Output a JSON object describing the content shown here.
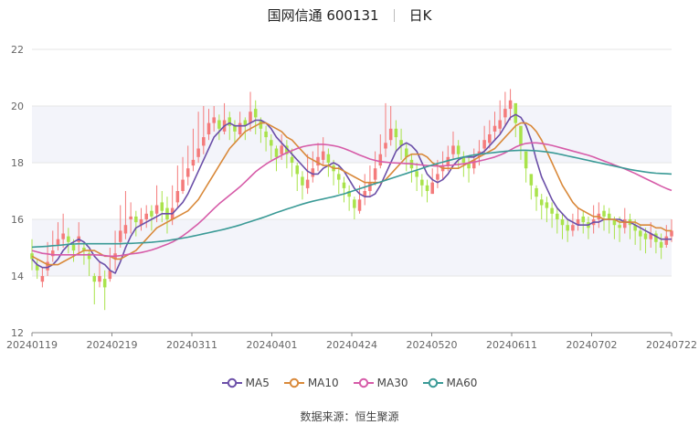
{
  "header": {
    "stock": "国网信通 600131",
    "period": "日K"
  },
  "source": {
    "label": "数据来源：",
    "value": "恒生聚源"
  },
  "colors": {
    "up": "#f47b7b",
    "down": "#a9e34b",
    "grid": "#e6e6e6",
    "band": "#f3f4fa",
    "axis": "#888888"
  },
  "chart_data": {
    "type": "line",
    "x_ticks": [
      "20240119",
      "20240219",
      "20240311",
      "20240401",
      "20240424",
      "20240520",
      "20240611",
      "20240702",
      "20240722"
    ],
    "y_ticks": [
      "12",
      "14",
      "16",
      "18",
      "20",
      "22"
    ],
    "ylim": [
      12,
      22
    ],
    "n_days": 124,
    "candles": {
      "close": [
        14.6,
        14.2,
        14.0,
        14.5,
        14.9,
        15.3,
        15.5,
        15.2,
        14.9,
        15.4,
        14.9,
        14.6,
        13.8,
        14.0,
        13.6,
        14.2,
        14.8,
        15.6,
        15.8,
        16.1,
        15.9,
        16.0,
        16.2,
        16.1,
        16.5,
        16.3,
        16.0,
        16.4,
        17.0,
        17.4,
        17.8,
        18.1,
        18.5,
        18.9,
        19.4,
        19.6,
        19.2,
        19.5,
        19.3,
        19.1,
        19.4,
        19.3,
        19.8,
        19.6,
        19.2,
        18.9,
        18.6,
        18.2,
        18.6,
        18.3,
        18.0,
        17.6,
        17.2,
        17.4,
        17.8,
        18.2,
        18.4,
        18.0,
        17.7,
        17.4,
        17.1,
        16.8,
        16.4,
        16.7,
        17.0,
        17.3,
        17.8,
        18.3,
        18.7,
        19.2,
        18.9,
        18.6,
        18.2,
        17.8,
        17.5,
        17.2,
        17.0,
        17.3,
        17.6,
        17.9,
        18.2,
        18.6,
        18.3,
        18.0,
        17.8,
        18.1,
        18.4,
        18.8,
        19.0,
        19.3,
        19.5,
        19.9,
        20.2,
        19.4,
        18.6,
        17.8,
        17.2,
        16.8,
        16.5,
        16.4,
        16.2,
        16.0,
        15.8,
        15.6,
        15.8,
        16.0,
        15.9,
        15.7,
        16.0,
        16.2,
        16.1,
        16.0,
        15.8,
        15.7,
        16.0,
        15.8,
        15.6,
        15.4,
        15.3,
        15.5,
        15.2,
        15.0,
        15.4,
        15.6
      ],
      "high": [
        15.3,
        14.6,
        14.3,
        15.2,
        15.6,
        15.9,
        16.2,
        15.7,
        15.3,
        15.9,
        15.2,
        14.9,
        14.1,
        14.5,
        14.2,
        15.0,
        15.6,
        16.5,
        17.0,
        16.6,
        16.3,
        16.4,
        16.5,
        16.5,
        17.2,
        17.0,
        16.8,
        17.2,
        17.9,
        18.2,
        18.6,
        19.2,
        19.8,
        20.0,
        19.9,
        20.0,
        19.7,
        20.1,
        19.8,
        19.5,
        19.8,
        19.6,
        20.5,
        20.2,
        19.6,
        19.3,
        19.0,
        18.6,
        19.0,
        18.8,
        18.5,
        18.0,
        17.7,
        18.3,
        18.4,
        18.7,
        18.9,
        18.5,
        18.1,
        17.9,
        17.5,
        17.2,
        16.8,
        17.2,
        17.6,
        17.9,
        18.4,
        19.0,
        20.1,
        20.0,
        19.5,
        19.2,
        18.7,
        18.3,
        18.0,
        17.6,
        17.4,
        17.8,
        18.1,
        18.4,
        18.6,
        19.1,
        18.8,
        18.4,
        18.2,
        18.5,
        18.8,
        19.3,
        19.5,
        19.8,
        20.2,
        20.5,
        20.6,
        20.0,
        19.1,
        18.2,
        17.6,
        17.2,
        16.9,
        16.8,
        16.6,
        16.4,
        16.2,
        16.0,
        16.2,
        16.4,
        16.3,
        16.1,
        16.5,
        16.6,
        16.5,
        16.4,
        16.1,
        16.1,
        16.4,
        16.2,
        16.0,
        15.8,
        15.7,
        15.9,
        15.6,
        15.5,
        15.8,
        16.0
      ],
      "low": [
        14.2,
        13.9,
        13.6,
        14.0,
        14.5,
        14.9,
        15.0,
        14.8,
        14.5,
        14.8,
        14.4,
        14.0,
        13.0,
        13.6,
        12.8,
        13.8,
        14.2,
        15.0,
        15.3,
        15.5,
        15.4,
        15.6,
        15.7,
        15.6,
        15.9,
        15.9,
        15.5,
        15.8,
        16.4,
        16.9,
        17.2,
        17.7,
        18.0,
        18.3,
        18.8,
        19.1,
        18.8,
        19.0,
        18.8,
        18.7,
        18.9,
        18.8,
        19.1,
        19.0,
        18.7,
        18.4,
        18.1,
        17.7,
        18.1,
        17.8,
        17.5,
        17.0,
        16.7,
        16.9,
        17.3,
        17.7,
        17.9,
        17.5,
        17.2,
        16.9,
        16.6,
        16.3,
        16.0,
        16.2,
        16.5,
        16.8,
        17.2,
        17.8,
        18.2,
        18.6,
        18.4,
        18.1,
        17.7,
        17.3,
        17.0,
        16.8,
        16.6,
        16.9,
        17.1,
        17.4,
        17.7,
        18.1,
        17.8,
        17.5,
        17.3,
        17.6,
        17.9,
        18.3,
        18.5,
        18.8,
        19.0,
        19.3,
        19.5,
        18.9,
        18.1,
        17.3,
        16.7,
        16.3,
        16.0,
        15.9,
        15.7,
        15.5,
        15.3,
        15.2,
        15.4,
        15.6,
        15.5,
        15.3,
        15.5,
        15.7,
        15.6,
        15.5,
        15.3,
        15.2,
        15.5,
        15.3,
        15.1,
        14.9,
        14.8,
        15.0,
        14.8,
        14.6,
        15.0,
        15.2
      ],
      "open": [
        14.8,
        14.4,
        13.8,
        14.2,
        14.7,
        15.1,
        15.3,
        15.4,
        15.1,
        15.2,
        15.0,
        14.8,
        14.0,
        13.8,
        13.9,
        13.9,
        14.6,
        15.2,
        15.5,
        16.0,
        16.1,
        15.8,
        16.0,
        16.3,
        16.2,
        16.6,
        16.4,
        16.0,
        16.6,
        17.0,
        17.5,
        17.9,
        18.2,
        18.6,
        19.0,
        19.4,
        19.5,
        19.1,
        19.6,
        19.3,
        19.0,
        19.5,
        19.4,
        19.9,
        19.5,
        19.1,
        18.8,
        18.5,
        18.3,
        18.6,
        18.2,
        17.9,
        17.5,
        17.1,
        17.5,
        17.9,
        18.1,
        18.3,
        17.9,
        17.6,
        17.3,
        17.0,
        16.7,
        16.3,
        16.8,
        17.0,
        17.4,
        17.9,
        18.5,
        18.8,
        19.2,
        18.8,
        18.5,
        18.1,
        17.7,
        17.4,
        17.2,
        16.9,
        17.4,
        17.7,
        17.9,
        18.3,
        18.6,
        18.2,
        18.0,
        17.8,
        18.2,
        18.5,
        18.7,
        19.1,
        19.2,
        19.6,
        19.9,
        20.1,
        19.3,
        18.4,
        17.6,
        17.1,
        16.7,
        16.6,
        16.4,
        16.2,
        16.0,
        15.8,
        15.6,
        15.8,
        16.1,
        15.9,
        15.8,
        16.0,
        16.3,
        16.2,
        16.0,
        15.8,
        15.7,
        16.0,
        15.8,
        15.6,
        15.5,
        15.3,
        15.5,
        15.2,
        15.1,
        15.4
      ]
    },
    "series": [
      {
        "name": "MA5",
        "color": "#6b4fa8",
        "values": [
          14.6,
          14.4,
          14.3,
          14.3,
          14.4,
          14.6,
          14.9,
          15.1,
          15.2,
          15.3,
          15.2,
          15.0,
          14.7,
          14.5,
          14.4,
          14.2,
          14.1,
          14.5,
          15.0,
          15.4,
          15.7,
          15.8,
          15.9,
          16.0,
          16.1,
          16.2,
          16.2,
          16.2,
          16.4,
          16.6,
          16.9,
          17.3,
          17.7,
          18.1,
          18.5,
          18.9,
          19.1,
          19.3,
          19.4,
          19.3,
          19.3,
          19.3,
          19.4,
          19.5,
          19.5,
          19.4,
          19.2,
          18.9,
          18.7,
          18.5,
          18.3,
          18.1,
          17.9,
          17.7,
          17.6,
          17.6,
          17.8,
          17.9,
          18.0,
          17.9,
          17.7,
          17.4,
          17.1,
          16.9,
          16.8,
          16.8,
          16.9,
          17.2,
          17.6,
          18.0,
          18.4,
          18.6,
          18.7,
          18.6,
          18.4,
          18.0,
          17.6,
          17.4,
          17.3,
          17.4,
          17.6,
          17.9,
          18.1,
          18.2,
          18.2,
          18.2,
          18.3,
          18.4,
          18.6,
          18.8,
          19.0,
          19.3,
          19.6,
          19.7,
          19.6,
          19.3,
          18.8,
          18.1,
          17.5,
          17.1,
          16.7,
          16.4,
          16.2,
          16.0,
          15.9,
          15.8,
          15.8,
          15.8,
          15.9,
          15.9,
          16.0,
          16.0,
          16.0,
          16.0,
          15.9,
          15.9,
          15.8,
          15.7,
          15.6,
          15.5,
          15.4,
          15.3,
          15.3,
          15.3
        ]
      },
      {
        "name": "MA10",
        "color": "#d9893a",
        "values": [
          14.7,
          14.6,
          14.5,
          14.4,
          14.4,
          14.4,
          14.5,
          14.6,
          14.7,
          14.8,
          14.9,
          14.9,
          14.9,
          14.8,
          14.7,
          14.7,
          14.6,
          14.6,
          14.7,
          14.8,
          14.9,
          15.1,
          15.3,
          15.5,
          15.7,
          15.8,
          15.9,
          16.0,
          16.1,
          16.2,
          16.3,
          16.5,
          16.7,
          17.0,
          17.3,
          17.6,
          17.9,
          18.2,
          18.5,
          18.7,
          18.9,
          19.1,
          19.2,
          19.3,
          19.4,
          19.4,
          19.3,
          19.2,
          19.1,
          18.9,
          18.8,
          18.6,
          18.4,
          18.2,
          18.1,
          18.0,
          17.9,
          17.9,
          17.8,
          17.8,
          17.7,
          17.6,
          17.5,
          17.4,
          17.3,
          17.3,
          17.3,
          17.3,
          17.4,
          17.6,
          17.8,
          18.0,
          18.2,
          18.3,
          18.3,
          18.3,
          18.2,
          18.0,
          17.9,
          17.8,
          17.8,
          17.8,
          17.8,
          17.9,
          18.0,
          18.1,
          18.2,
          18.3,
          18.4,
          18.5,
          18.7,
          18.9,
          19.1,
          19.3,
          19.4,
          19.4,
          19.3,
          19.1,
          18.8,
          18.4,
          18.0,
          17.6,
          17.2,
          16.9,
          16.6,
          16.4,
          16.3,
          16.2,
          16.1,
          16.1,
          16.0,
          16.0,
          16.0,
          15.9,
          15.9,
          15.9,
          15.9,
          15.8,
          15.8,
          15.8,
          15.7,
          15.7,
          15.6,
          15.6
        ]
      },
      {
        "name": "MA30",
        "color": "#d65ba8",
        "values": [
          14.9,
          14.85,
          14.8,
          14.78,
          14.75,
          14.75,
          14.75,
          14.75,
          14.75,
          14.75,
          14.75,
          14.75,
          14.75,
          14.74,
          14.72,
          14.7,
          14.7,
          14.72,
          14.75,
          14.78,
          14.8,
          14.83,
          14.87,
          14.92,
          14.98,
          15.05,
          15.12,
          15.2,
          15.3,
          15.42,
          15.55,
          15.7,
          15.85,
          16.02,
          16.2,
          16.38,
          16.55,
          16.7,
          16.85,
          17.0,
          17.15,
          17.32,
          17.5,
          17.68,
          17.82,
          17.95,
          18.06,
          18.16,
          18.26,
          18.35,
          18.43,
          18.5,
          18.56,
          18.6,
          18.63,
          18.65,
          18.65,
          18.63,
          18.6,
          18.56,
          18.5,
          18.43,
          18.35,
          18.27,
          18.2,
          18.13,
          18.08,
          18.04,
          18.02,
          18.0,
          17.99,
          17.98,
          17.97,
          17.96,
          17.94,
          17.92,
          17.9,
          17.89,
          17.88,
          17.89,
          17.9,
          17.92,
          17.94,
          17.96,
          17.99,
          18.02,
          18.06,
          18.1,
          18.15,
          18.2,
          18.27,
          18.35,
          18.45,
          18.55,
          18.63,
          18.68,
          18.7,
          18.7,
          18.68,
          18.65,
          18.61,
          18.56,
          18.51,
          18.46,
          18.41,
          18.36,
          18.31,
          18.26,
          18.2,
          18.13,
          18.06,
          17.99,
          17.92,
          17.85,
          17.78,
          17.7,
          17.62,
          17.53,
          17.44,
          17.35,
          17.26,
          17.17,
          17.09,
          17.02
        ]
      },
      {
        "name": "MA60",
        "color": "#3a9a96",
        "values": [
          15.02,
          15.03,
          15.04,
          15.05,
          15.07,
          15.08,
          15.1,
          15.12,
          15.13,
          15.14,
          15.14,
          15.14,
          15.14,
          15.14,
          15.14,
          15.14,
          15.14,
          15.14,
          15.15,
          15.15,
          15.16,
          15.17,
          15.18,
          15.19,
          15.21,
          15.23,
          15.25,
          15.28,
          15.31,
          15.34,
          15.37,
          15.41,
          15.45,
          15.49,
          15.53,
          15.57,
          15.61,
          15.65,
          15.7,
          15.75,
          15.8,
          15.86,
          15.92,
          15.98,
          16.04,
          16.1,
          16.17,
          16.24,
          16.3,
          16.36,
          16.42,
          16.48,
          16.54,
          16.59,
          16.64,
          16.68,
          16.72,
          16.76,
          16.8,
          16.85,
          16.9,
          16.96,
          17.02,
          17.08,
          17.14,
          17.2,
          17.26,
          17.32,
          17.38,
          17.44,
          17.5,
          17.56,
          17.62,
          17.68,
          17.74,
          17.8,
          17.86,
          17.92,
          17.97,
          18.02,
          18.07,
          18.12,
          18.16,
          18.2,
          18.24,
          18.27,
          18.3,
          18.32,
          18.34,
          18.36,
          18.38,
          18.4,
          18.42,
          18.43,
          18.44,
          18.44,
          18.43,
          18.42,
          18.4,
          18.38,
          18.35,
          18.32,
          18.28,
          18.24,
          18.2,
          18.16,
          18.12,
          18.08,
          18.04,
          18.0,
          17.96,
          17.92,
          17.88,
          17.84,
          17.8,
          17.76,
          17.73,
          17.7,
          17.67,
          17.65,
          17.63,
          17.62,
          17.61,
          17.6
        ]
      }
    ]
  }
}
